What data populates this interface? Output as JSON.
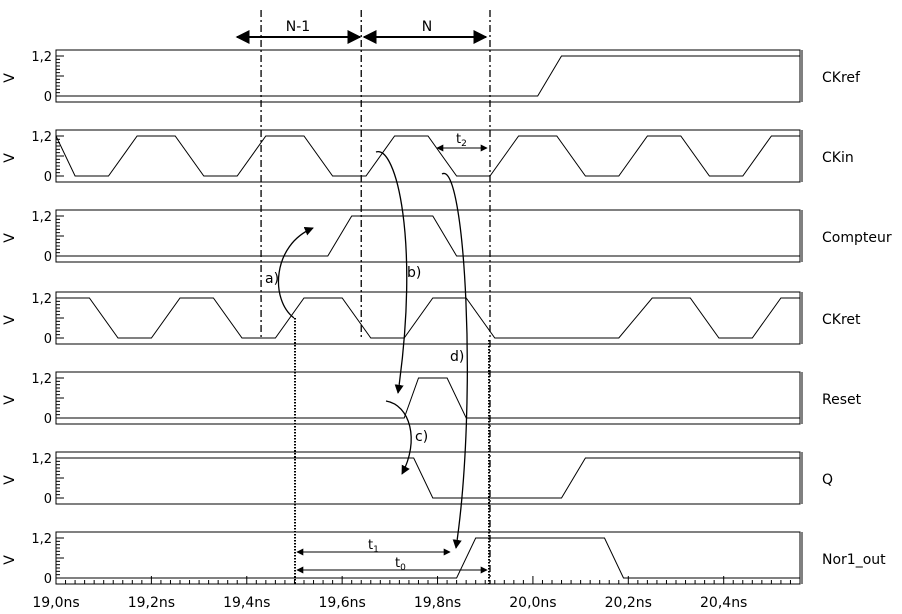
{
  "x_axis": {
    "unit": "ns",
    "min": 19.0,
    "max": 20.56,
    "ticks": [
      "19,0ns",
      "19,2ns",
      "19,4ns",
      "19,6ns",
      "19,8ns",
      "20,0ns",
      "20,2ns",
      "20,4ns"
    ],
    "tick_values": [
      19.0,
      19.2,
      19.4,
      19.6,
      19.8,
      20.0,
      20.2,
      20.4
    ]
  },
  "y_axis_label": "V",
  "y_tick_high": "1,2",
  "y_tick_low": "0",
  "signals": [
    {
      "name": "CKref",
      "points": [
        [
          19.0,
          0
        ],
        [
          20.01,
          0
        ],
        [
          20.06,
          1.2
        ],
        [
          20.56,
          1.2
        ]
      ]
    },
    {
      "name": "CKin",
      "points": [
        [
          19.0,
          1.2
        ],
        [
          19.04,
          0
        ],
        [
          19.11,
          0
        ],
        [
          19.17,
          1.2
        ],
        [
          19.25,
          1.2
        ],
        [
          19.31,
          0
        ],
        [
          19.38,
          0
        ],
        [
          19.44,
          1.2
        ],
        [
          19.52,
          1.2
        ],
        [
          19.58,
          0
        ],
        [
          19.65,
          0
        ],
        [
          19.71,
          1.2
        ],
        [
          19.78,
          1.2
        ],
        [
          19.84,
          0
        ],
        [
          19.91,
          0
        ],
        [
          19.97,
          1.2
        ],
        [
          20.05,
          1.2
        ],
        [
          20.11,
          0
        ],
        [
          20.18,
          0
        ],
        [
          20.24,
          1.2
        ],
        [
          20.31,
          1.2
        ],
        [
          20.37,
          0
        ],
        [
          20.44,
          0
        ],
        [
          20.5,
          1.2
        ],
        [
          20.56,
          1.2
        ]
      ]
    },
    {
      "name": "Compteur",
      "points": [
        [
          19.0,
          0
        ],
        [
          19.57,
          0
        ],
        [
          19.62,
          1.2
        ],
        [
          19.79,
          1.2
        ],
        [
          19.84,
          0
        ],
        [
          20.56,
          0
        ]
      ]
    },
    {
      "name": "CKret",
      "points": [
        [
          19.0,
          1.2
        ],
        [
          19.07,
          1.2
        ],
        [
          19.13,
          0
        ],
        [
          19.2,
          0
        ],
        [
          19.26,
          1.2
        ],
        [
          19.33,
          1.2
        ],
        [
          19.39,
          0
        ],
        [
          19.46,
          0
        ],
        [
          19.52,
          1.2
        ],
        [
          19.6,
          1.2
        ],
        [
          19.66,
          0
        ],
        [
          19.73,
          0
        ],
        [
          19.79,
          1.2
        ],
        [
          19.86,
          1.2
        ],
        [
          19.92,
          0
        ],
        [
          19.98,
          0
        ],
        [
          20.05,
          0
        ],
        [
          20.12,
          0
        ],
        [
          20.18,
          0
        ],
        [
          20.25,
          1.2
        ],
        [
          20.33,
          1.2
        ],
        [
          20.39,
          0
        ],
        [
          20.46,
          0
        ],
        [
          20.52,
          1.2
        ],
        [
          20.56,
          1.2
        ]
      ]
    },
    {
      "name": "Reset",
      "points": [
        [
          19.0,
          0
        ],
        [
          19.73,
          0
        ],
        [
          19.76,
          1.2
        ],
        [
          19.82,
          1.2
        ],
        [
          19.86,
          0
        ],
        [
          20.56,
          0
        ]
      ]
    },
    {
      "name": "Q",
      "points": [
        [
          19.0,
          1.2
        ],
        [
          19.75,
          1.2
        ],
        [
          19.79,
          0
        ],
        [
          20.06,
          0
        ],
        [
          20.11,
          1.2
        ],
        [
          20.56,
          1.2
        ]
      ]
    },
    {
      "name": "Nor1_out",
      "points": [
        [
          19.0,
          0
        ],
        [
          19.84,
          0
        ],
        [
          19.88,
          1.2
        ],
        [
          20.15,
          1.2
        ],
        [
          20.19,
          0
        ],
        [
          20.56,
          0
        ]
      ]
    }
  ],
  "cycle_markers": {
    "lines": [
      19.43,
      19.64,
      19.91
    ],
    "labels": [
      "N-1",
      "N"
    ]
  },
  "causal_arrows": [
    {
      "label": "a)"
    },
    {
      "label": "b)"
    },
    {
      "label": "c)"
    },
    {
      "label": "d)"
    }
  ],
  "timing_labels": {
    "t1": "t",
    "t1_sub": "1",
    "t0": "t",
    "t0_sub": "0",
    "t2": "t",
    "t2_sub": "2"
  }
}
